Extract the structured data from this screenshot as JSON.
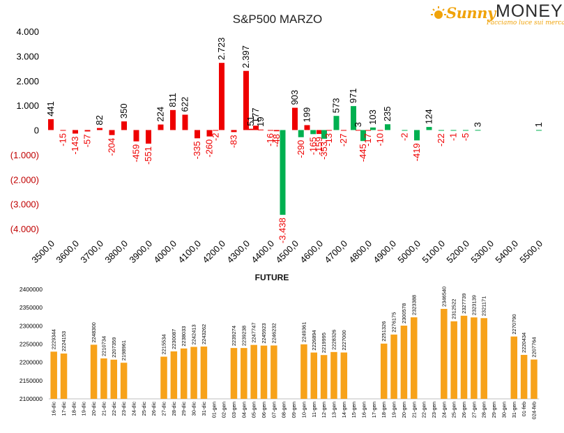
{
  "logo": {
    "brand_sunny": "Sunny",
    "brand_money": "MONEY",
    "tagline": "Facciamo luce sui mercati"
  },
  "colors": {
    "negative": "#ee0000",
    "positive": "#00b050",
    "future_bar": "#f7a21a",
    "axis_text_neg": "#c00000"
  },
  "chart_data": [
    {
      "type": "bar",
      "title": "S&P500 MARZO",
      "xlabel": "",
      "ylabel": "",
      "ylim": [
        -4000,
        4000
      ],
      "y_ticks": [
        4000,
        3000,
        2000,
        1000,
        0,
        -1000,
        -2000,
        -3000,
        -4000
      ],
      "y_tick_labels": [
        "4.000",
        "3.000",
        "2.000",
        "1.000",
        "0",
        "(1.000)",
        "(2.000)",
        "(3.000)",
        "(4.000)"
      ],
      "x_ticks": [
        3500,
        3600,
        3700,
        3800,
        3900,
        4000,
        4100,
        4200,
        4300,
        4400,
        4500,
        4600,
        4700,
        4800,
        4900,
        5000,
        5100,
        5200,
        5300,
        5400,
        5500
      ],
      "x_tick_labels": [
        "3500,0",
        "3600,0",
        "3700,0",
        "3800,0",
        "3900,0",
        "4000,0",
        "4100,0",
        "4200,0",
        "4300,0",
        "4400,0",
        "4500,0",
        "4600,0",
        "4700,0",
        "4800,0",
        "4900,0",
        "5000,0",
        "5100,0",
        "5200,0",
        "5300,0",
        "5400,0",
        "5500,0"
      ],
      "grid": false,
      "bars": [
        {
          "strike": 3500,
          "value": 441,
          "label": "441",
          "color": "red"
        },
        {
          "strike": 3550,
          "value": -15,
          "label": "-15",
          "color": "red"
        },
        {
          "strike": 3600,
          "value": -143,
          "label": "-143",
          "color": "red"
        },
        {
          "strike": 3650,
          "value": -57,
          "label": "-57",
          "color": "red"
        },
        {
          "strike": 3700,
          "value": 82,
          "label": "82",
          "color": "red"
        },
        {
          "strike": 3750,
          "value": -204,
          "label": "-204",
          "color": "red"
        },
        {
          "strike": 3800,
          "value": 350,
          "label": "350",
          "color": "red"
        },
        {
          "strike": 3850,
          "value": -459,
          "label": "-459",
          "color": "red"
        },
        {
          "strike": 3900,
          "value": -551,
          "label": "-551",
          "color": "red"
        },
        {
          "strike": 3950,
          "value": 224,
          "label": "224",
          "color": "red"
        },
        {
          "strike": 4000,
          "value": 811,
          "label": "811",
          "color": "red"
        },
        {
          "strike": 4050,
          "value": 622,
          "label": "622",
          "color": "red"
        },
        {
          "strike": 4100,
          "value": -335,
          "label": "-335",
          "color": "red"
        },
        {
          "strike": 4150,
          "value": -260,
          "label": "-260",
          "color": "red"
        },
        {
          "strike": 4175,
          "value": -2,
          "label": "-2",
          "color": "red"
        },
        {
          "strike": 4200,
          "value": 2723,
          "label": "2.723",
          "color": "red"
        },
        {
          "strike": 4250,
          "value": -83,
          "label": "-83",
          "color": "red"
        },
        {
          "strike": 4300,
          "value": 2397,
          "label": "2.397",
          "color": "red"
        },
        {
          "strike": 4320,
          "value": 51,
          "label": "51",
          "color": "red"
        },
        {
          "strike": 4340,
          "value": 177,
          "label": "177",
          "color": "red"
        },
        {
          "strike": 4360,
          "value": 19,
          "label": "19",
          "color": "red"
        },
        {
          "strike": 4400,
          "value": -16,
          "label": "-16",
          "color": "red"
        },
        {
          "strike": 4425,
          "value": -48,
          "label": "-48",
          "color": "red"
        },
        {
          "strike": 4450,
          "value": -3438,
          "label": "-3.438",
          "color": "green"
        },
        {
          "strike": 4500,
          "value": 903,
          "label": "903",
          "color": "red"
        },
        {
          "strike": 4525,
          "value": -290,
          "label": "-290",
          "color": "green"
        },
        {
          "strike": 4550,
          "value": 199,
          "label": "199",
          "color": "red"
        },
        {
          "strike": 4575,
          "value": -165,
          "label": "-165",
          "color": "green"
        },
        {
          "strike": 4600,
          "value": -159,
          "label": "-159",
          "color": "red"
        },
        {
          "strike": 4620,
          "value": -353,
          "label": "-353",
          "color": "green"
        },
        {
          "strike": 4640,
          "value": -13,
          "label": "-13",
          "color": "red"
        },
        {
          "strike": 4670,
          "value": 573,
          "label": "573",
          "color": "green"
        },
        {
          "strike": 4700,
          "value": -27,
          "label": "-27",
          "color": "red"
        },
        {
          "strike": 4740,
          "value": 971,
          "label": "971",
          "color": "green"
        },
        {
          "strike": 4760,
          "value": 3,
          "label": "3",
          "color": "red"
        },
        {
          "strike": 4780,
          "value": -445,
          "label": "-445",
          "color": "green"
        },
        {
          "strike": 4800,
          "value": -17,
          "label": "-17",
          "color": "red"
        },
        {
          "strike": 4820,
          "value": 103,
          "label": "103",
          "color": "green"
        },
        {
          "strike": 4850,
          "value": -10,
          "label": "-10",
          "color": "red"
        },
        {
          "strike": 4880,
          "value": 235,
          "label": "235",
          "color": "green"
        },
        {
          "strike": 4950,
          "value": -2,
          "label": "-2",
          "color": "green"
        },
        {
          "strike": 5000,
          "value": -419,
          "label": "-419",
          "color": "green"
        },
        {
          "strike": 5050,
          "value": 124,
          "label": "124",
          "color": "green"
        },
        {
          "strike": 5100,
          "value": -22,
          "label": "-22",
          "color": "green"
        },
        {
          "strike": 5150,
          "value": -1,
          "label": "-1",
          "color": "green"
        },
        {
          "strike": 5200,
          "value": -5,
          "label": "-5",
          "color": "green"
        },
        {
          "strike": 5250,
          "value": 3,
          "label": "3",
          "color": "green"
        },
        {
          "strike": 5500,
          "value": 1,
          "label": "1",
          "color": "green"
        }
      ]
    },
    {
      "type": "bar",
      "title": "FUTURE",
      "xlabel": "",
      "ylabel": "",
      "ylim": [
        2100000,
        2400000
      ],
      "y_ticks": [
        2100000,
        2150000,
        2200000,
        2250000,
        2300000,
        2350000,
        2400000
      ],
      "y_tick_labels": [
        "2100000",
        "2150000",
        "2200000",
        "2250000",
        "2300000",
        "2350000",
        "2400000"
      ],
      "grid": false,
      "categories": [
        "16-dic",
        "17-dic",
        "18-dic",
        "19-dic",
        "20-dic",
        "21-dic",
        "22-dic",
        "23-dic",
        "24-dic",
        "25-dic",
        "26-dic",
        "27-dic",
        "28-dic",
        "29-dic",
        "30-dic",
        "31-dic",
        "01-gen",
        "02-gen",
        "03-gen",
        "04-gen",
        "05-gen",
        "06-gen",
        "07-gen",
        "08-gen",
        "09-gen",
        "10-gen",
        "11-gen",
        "12-gen",
        "13-gen",
        "14-gen",
        "15-gen",
        "16-gen",
        "17-gen",
        "18-gen",
        "19-gen",
        "20-gen",
        "21-gen",
        "22-gen",
        "23-gen",
        "24-gen",
        "25-gen",
        "26-gen",
        "27-gen",
        "28-gen",
        "29-gen",
        "30-gen",
        "31-gen",
        "01-feb",
        "024-feb"
      ],
      "values": [
        2229344,
        2224153,
        null,
        null,
        2248300,
        2210734,
        2207359,
        2198961,
        null,
        null,
        null,
        2215534,
        2230087,
        2238033,
        2242413,
        2243262,
        null,
        null,
        2239274,
        2239238,
        2247747,
        2245923,
        2246232,
        null,
        null,
        2249361,
        2226894,
        2219995,
        2228326,
        2227000,
        null,
        null,
        null,
        2251326,
        2276175,
        2300578,
        2323388,
        null,
        null,
        2346540,
        2312522,
        2327739,
        2323139,
        2321171,
        null,
        null,
        2270790,
        2220434,
        2207764
      ],
      "value_labels": [
        "2229344",
        "2224153",
        null,
        null,
        "2248300",
        "2210734",
        "2207359",
        "2198961",
        null,
        null,
        null,
        "2215534",
        "2230087",
        "2238033",
        "2242413",
        "2243262",
        null,
        null,
        "2239274",
        "2239238",
        "2247747",
        "2245923",
        "2246232",
        null,
        null,
        "2249361",
        "2226894",
        "2219995",
        "2228326",
        "2227000",
        null,
        null,
        null,
        "2251326",
        "2276175",
        "2300578",
        "2323388",
        null,
        null,
        "2346540",
        "2312522",
        "2327739",
        "2323139",
        "2321171",
        null,
        null,
        "2270790",
        "2220434",
        "2207764"
      ]
    }
  ]
}
